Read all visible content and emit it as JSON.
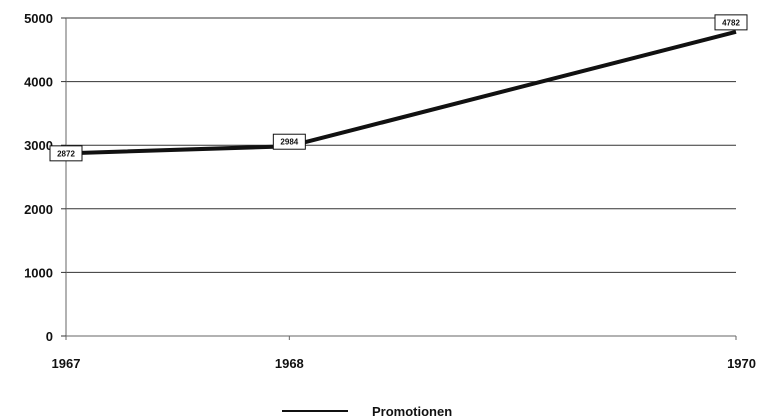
{
  "chart_data": {
    "type": "line",
    "x": [
      "1967",
      "1968",
      "1970"
    ],
    "series": [
      {
        "name": "Promotionen",
        "values": [
          2872,
          2984,
          4782
        ],
        "data_labels": [
          "2872",
          "2984",
          "4782"
        ],
        "color": "#111111"
      }
    ],
    "y_ticks": [
      "0",
      "1000",
      "2000",
      "3000",
      "4000",
      "5000"
    ],
    "ylim": [
      0,
      5000
    ],
    "grid": true,
    "legend_position": "bottom-center",
    "title": "",
    "xlabel": "",
    "ylabel": ""
  }
}
